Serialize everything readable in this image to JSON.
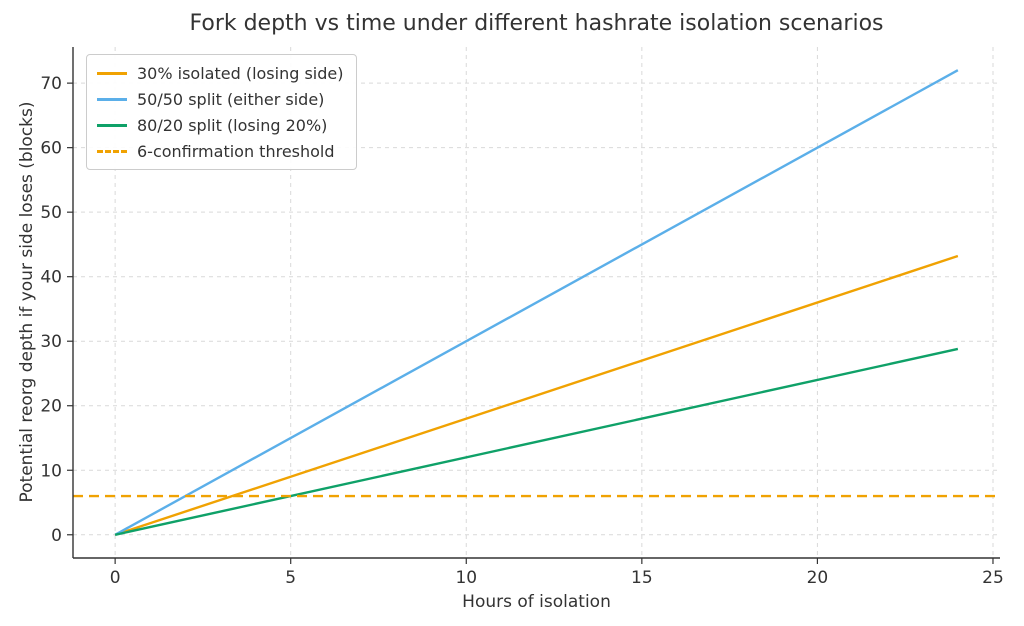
{
  "figure": {
    "background": "#ffffff",
    "text_color": "#333333",
    "grid_color": "#d9d9d9",
    "spine_color": "#333333"
  },
  "chart_data": {
    "type": "line",
    "title": "Fork depth vs time under different hashrate isolation scenarios",
    "xlabel": "Hours of isolation",
    "ylabel": "Potential reorg depth if your side loses (blocks)",
    "xlim": [
      -1.2,
      25.2
    ],
    "ylim": [
      -3.6,
      75.6
    ],
    "xticks": [
      0,
      5,
      10,
      15,
      20,
      25
    ],
    "yticks": [
      0,
      10,
      20,
      30,
      40,
      50,
      60,
      70
    ],
    "grid": true,
    "grid_style": "dashed",
    "legend_position": "upper-left",
    "series": [
      {
        "name": "30% isolated (losing side)",
        "color": "#F0A202",
        "style": "solid",
        "x": [
          0,
          24
        ],
        "y": [
          0,
          43.2
        ],
        "slope_blocks_per_hour": 1.8
      },
      {
        "name": "50/50 split (either side)",
        "color": "#5BAFE9",
        "style": "solid",
        "x": [
          0,
          24
        ],
        "y": [
          0,
          72
        ],
        "slope_blocks_per_hour": 3.0
      },
      {
        "name": "80/20 split (losing 20%)",
        "color": "#0FA168",
        "style": "solid",
        "x": [
          0,
          24
        ],
        "y": [
          0,
          28.8
        ],
        "slope_blocks_per_hour": 1.2
      },
      {
        "name": "6-confirmation threshold",
        "color": "#F0A202",
        "style": "dashed",
        "x": [
          -1.2,
          25.2
        ],
        "y": [
          6,
          6
        ],
        "threshold_blocks": 6
      }
    ]
  }
}
